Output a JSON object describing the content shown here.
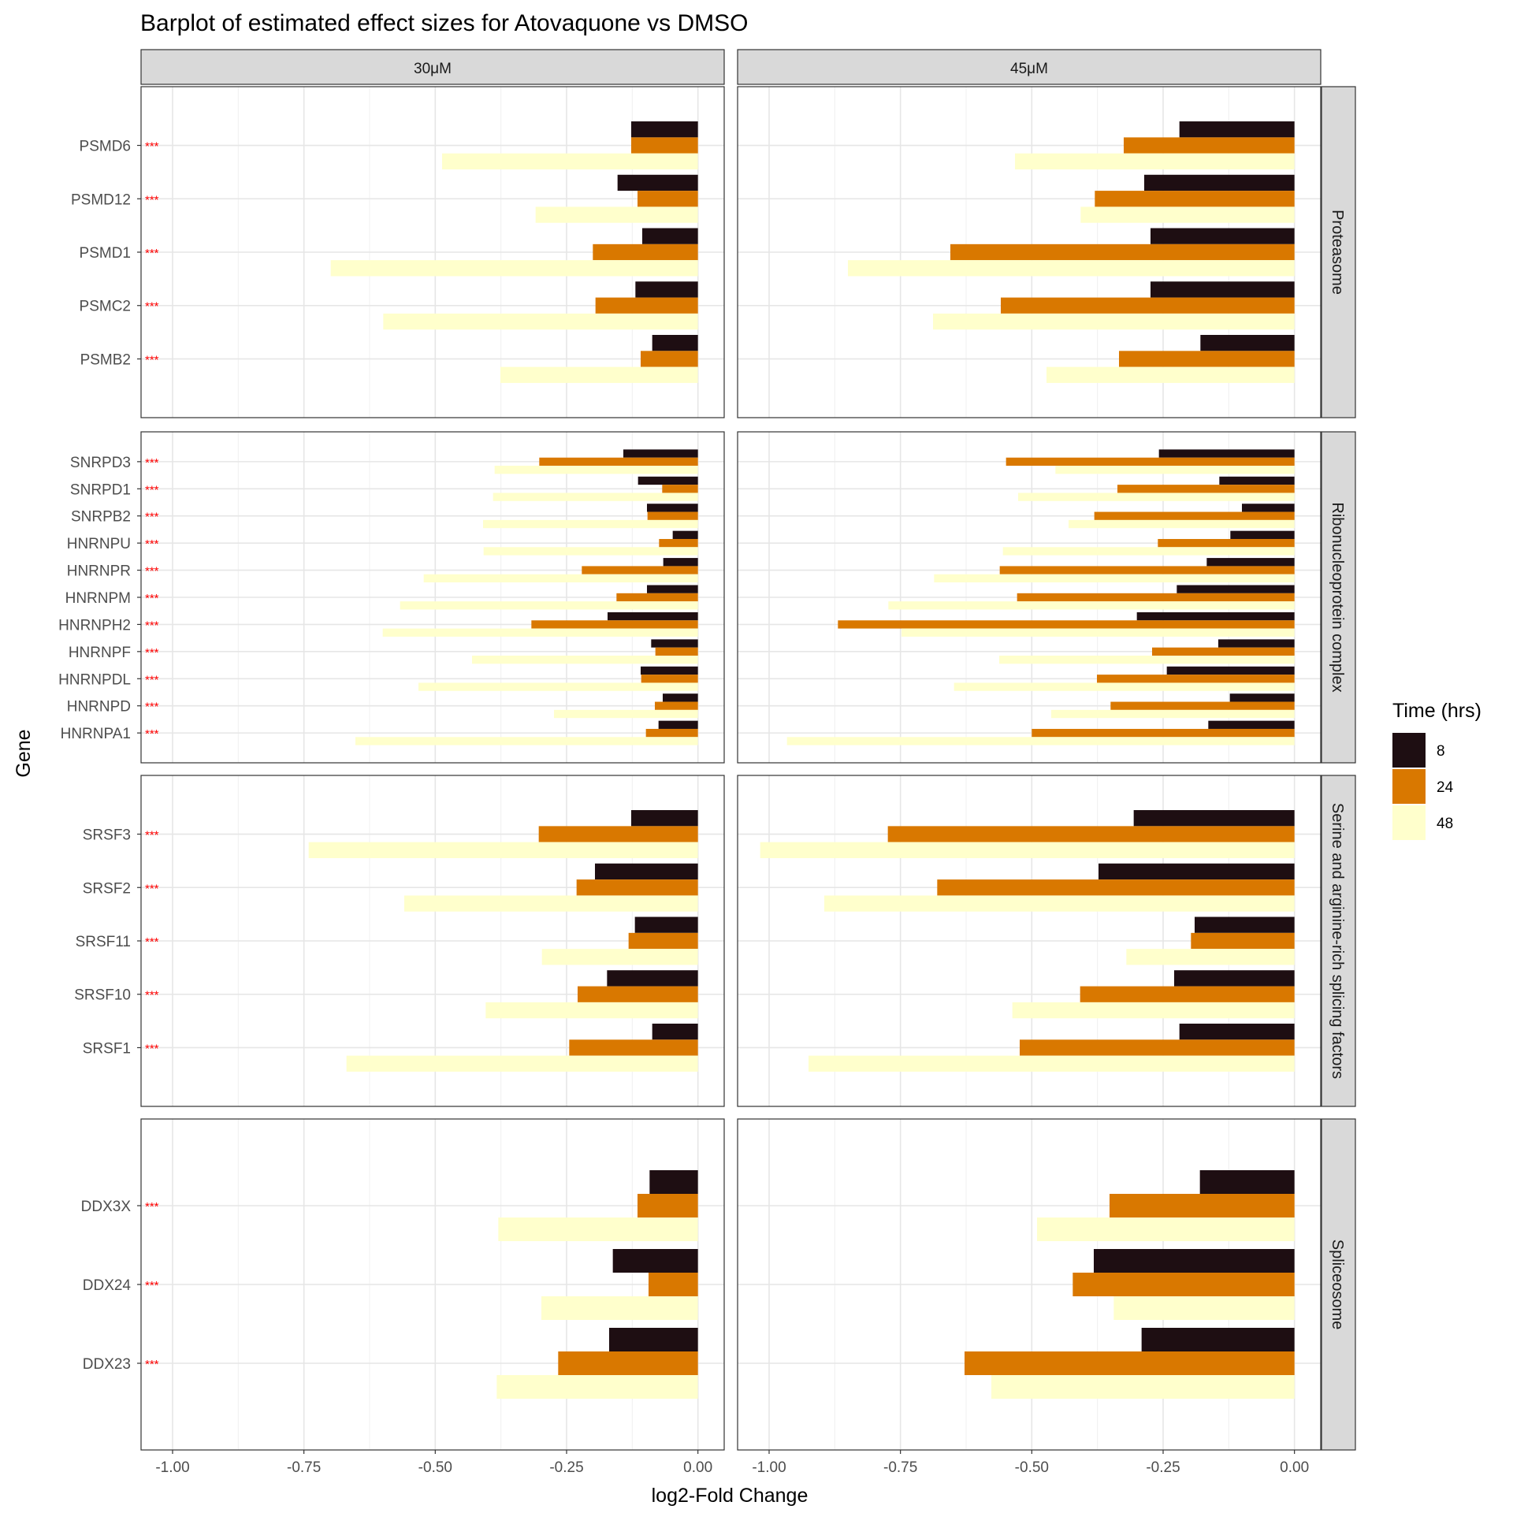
{
  "chart_data": {
    "type": "bar",
    "title": "Barplot of estimated effect sizes for Atovaquone vs DMSO",
    "xlabel": "log2-Fold Change",
    "ylabel": "Gene",
    "xlim": [
      -1.06,
      0.05
    ],
    "x_ticks": [
      -1.0,
      -0.75,
      -0.5,
      -0.25,
      0.0
    ],
    "x_tick_labels": [
      "-1.00",
      "-0.75",
      "-0.50",
      "-0.25",
      "0.00"
    ],
    "grid": true,
    "legend": {
      "title": "Time (hrs)",
      "position": "right",
      "entries": [
        {
          "label": "8",
          "color": "#1e0e12"
        },
        {
          "label": "24",
          "color": "#d97800"
        },
        {
          "label": "48",
          "color": "#ffffcc"
        }
      ]
    },
    "significance_marker": "***",
    "significance_color": "#ff0000",
    "columns": [
      "30μM",
      "45μM"
    ],
    "panels": [
      {
        "name": "Proteasome",
        "genes": [
          {
            "gene": "PSMD6",
            "sig": "***",
            "values": {
              "30μM": [
                -0.127,
                -0.127,
                -0.487
              ],
              "45μM": [
                -0.219,
                -0.325,
                -0.532
              ]
            }
          },
          {
            "gene": "PSMD12",
            "sig": "***",
            "values": {
              "30μM": [
                -0.153,
                -0.115,
                -0.309
              ],
              "45μM": [
                -0.286,
                -0.38,
                -0.407
              ]
            }
          },
          {
            "gene": "PSMD1",
            "sig": "***",
            "values": {
              "30μM": [
                -0.106,
                -0.2,
                -0.699
              ],
              "45μM": [
                -0.274,
                -0.655,
                -0.85
              ]
            }
          },
          {
            "gene": "PSMC2",
            "sig": "***",
            "values": {
              "30μM": [
                -0.119,
                -0.195,
                -0.599
              ],
              "45μM": [
                -0.274,
                -0.559,
                -0.688
              ]
            }
          },
          {
            "gene": "PSMB2",
            "sig": "***",
            "values": {
              "30μM": [
                -0.087,
                -0.109,
                -0.376
              ],
              "45μM": [
                -0.179,
                -0.334,
                -0.472
              ]
            }
          }
        ]
      },
      {
        "name": "Ribonucleoprotein complex",
        "genes": [
          {
            "gene": "SNRPD3",
            "sig": "***",
            "values": {
              "30μM": [
                -0.142,
                -0.302,
                -0.387
              ],
              "45μM": [
                -0.258,
                -0.549,
                -0.455
              ]
            }
          },
          {
            "gene": "SNRPD1",
            "sig": "***",
            "values": {
              "30μM": [
                -0.114,
                -0.068,
                -0.39
              ],
              "45μM": [
                -0.143,
                -0.337,
                -0.526
              ]
            }
          },
          {
            "gene": "SNRPB2",
            "sig": "***",
            "values": {
              "30μM": [
                -0.097,
                -0.096,
                -0.409
              ],
              "45μM": [
                -0.1,
                -0.381,
                -0.43
              ]
            }
          },
          {
            "gene": "HNRNPU",
            "sig": "***",
            "values": {
              "30μM": [
                -0.048,
                -0.074,
                -0.408
              ],
              "45μM": [
                -0.122,
                -0.26,
                -0.555
              ]
            }
          },
          {
            "gene": "HNRNPR",
            "sig": "***",
            "values": {
              "30μM": [
                -0.066,
                -0.221,
                -0.522
              ],
              "45μM": [
                -0.167,
                -0.561,
                -0.686
              ]
            }
          },
          {
            "gene": "HNRNPM",
            "sig": "***",
            "values": {
              "30μM": [
                -0.097,
                -0.155,
                -0.567
              ],
              "45μM": [
                -0.224,
                -0.528,
                -0.773
              ]
            }
          },
          {
            "gene": "HNRNPH2",
            "sig": "***",
            "values": {
              "30μM": [
                -0.172,
                -0.317,
                -0.6
              ],
              "45μM": [
                -0.3,
                -0.869,
                -0.748
              ]
            }
          },
          {
            "gene": "HNRNPF",
            "sig": "***",
            "values": {
              "30μM": [
                -0.089,
                -0.081,
                -0.43
              ],
              "45μM": [
                -0.145,
                -0.271,
                -0.562
              ]
            }
          },
          {
            "gene": "HNRNPDL",
            "sig": "***",
            "values": {
              "30μM": [
                -0.109,
                -0.108,
                -0.532
              ],
              "45μM": [
                -0.243,
                -0.376,
                -0.648
              ]
            }
          },
          {
            "gene": "HNRNPD",
            "sig": "***",
            "values": {
              "30μM": [
                -0.067,
                -0.082,
                -0.274
              ],
              "45μM": [
                -0.123,
                -0.35,
                -0.463
              ]
            }
          },
          {
            "gene": "HNRNPA1",
            "sig": "***",
            "values": {
              "30μM": [
                -0.075,
                -0.099,
                -0.652
              ],
              "45μM": [
                -0.164,
                -0.5,
                -0.966
              ]
            }
          }
        ]
      },
      {
        "name": "Serine and arginine-rich splicing factors",
        "genes": [
          {
            "gene": "SRSF3",
            "sig": "***",
            "values": {
              "30μM": [
                -0.127,
                -0.303,
                -0.741
              ],
              "45μM": [
                -0.306,
                -0.774,
                -1.017
              ]
            }
          },
          {
            "gene": "SRSF2",
            "sig": "***",
            "values": {
              "30μM": [
                -0.196,
                -0.231,
                -0.559
              ],
              "45μM": [
                -0.373,
                -0.68,
                -0.895
              ]
            }
          },
          {
            "gene": "SRSF11",
            "sig": "***",
            "values": {
              "30μM": [
                -0.12,
                -0.132,
                -0.297
              ],
              "45μM": [
                -0.19,
                -0.197,
                -0.32
              ]
            }
          },
          {
            "gene": "SRSF10",
            "sig": "***",
            "values": {
              "30μM": [
                -0.173,
                -0.229,
                -0.404
              ],
              "45μM": [
                -0.229,
                -0.408,
                -0.537
              ]
            }
          },
          {
            "gene": "SRSF1",
            "sig": "***",
            "values": {
              "30μM": [
                -0.087,
                -0.245,
                -0.669
              ],
              "45μM": [
                -0.219,
                -0.523,
                -0.925
              ]
            }
          }
        ]
      },
      {
        "name": "Spliceosome",
        "genes": [
          {
            "gene": "DDX3X",
            "sig": "***",
            "values": {
              "30μM": [
                -0.092,
                -0.115,
                -0.38
              ],
              "45μM": [
                -0.18,
                -0.352,
                -0.49
              ]
            }
          },
          {
            "gene": "DDX24",
            "sig": "***",
            "values": {
              "30μM": [
                -0.162,
                -0.094,
                -0.298
              ],
              "45μM": [
                -0.382,
                -0.422,
                -0.344
              ]
            }
          },
          {
            "gene": "DDX23",
            "sig": "***",
            "values": {
              "30μM": [
                -0.169,
                -0.266,
                -0.383
              ],
              "45μM": [
                -0.291,
                -0.628,
                -0.577
              ]
            }
          }
        ]
      }
    ]
  }
}
